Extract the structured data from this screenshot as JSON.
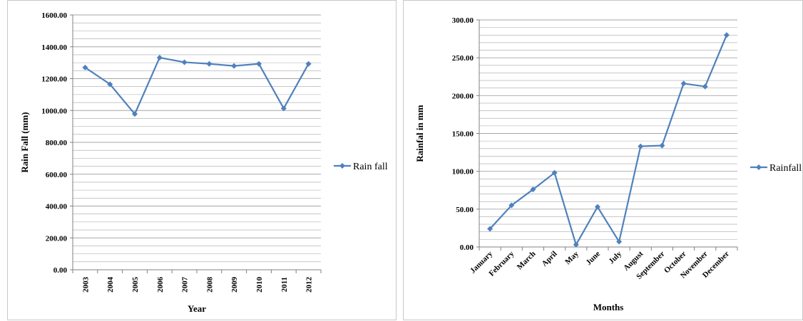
{
  "colors": {
    "series": "#4f81bd",
    "grid": "#a6a6a6",
    "axis": "#808080"
  },
  "chart_data": [
    {
      "type": "line",
      "xlabel": "Year",
      "ylabel": "Rain Fall (mm)",
      "ylim": [
        0,
        1600
      ],
      "major_tick": 200,
      "minor_tick": 50,
      "yticks": [
        "0.00",
        "200.00",
        "400.00",
        "600.00",
        "800.00",
        "1000.00",
        "1200.00",
        "1400.00",
        "1600.00"
      ],
      "categories": [
        "2003",
        "2004",
        "2005",
        "2006",
        "2007",
        "2008",
        "2009",
        "2010",
        "2011",
        "2012"
      ],
      "series": [
        {
          "name": "Rain fall",
          "values": [
            1270,
            1165,
            978,
            1332,
            1303,
            1293,
            1280,
            1293,
            1013,
            1293
          ]
        }
      ],
      "legend_position": "right",
      "grid": true
    },
    {
      "type": "line",
      "xlabel": "Months",
      "ylabel": "Rainfal in mm",
      "ylim": [
        0,
        300
      ],
      "major_tick": 50,
      "minor_tick": 10,
      "yticks": [
        "0.00",
        "50.00",
        "100.00",
        "150.00",
        "200.00",
        "250.00",
        "300.00"
      ],
      "categories": [
        "January",
        "February",
        "March",
        "April",
        "May",
        "June",
        "July",
        "August",
        "September",
        "October",
        "November",
        "December"
      ],
      "series": [
        {
          "name": "Rainfall",
          "values": [
            24,
            55,
            76,
            98,
            3,
            53,
            7,
            133,
            134,
            216,
            212,
            280
          ]
        }
      ],
      "legend_position": "right",
      "grid": true
    }
  ]
}
